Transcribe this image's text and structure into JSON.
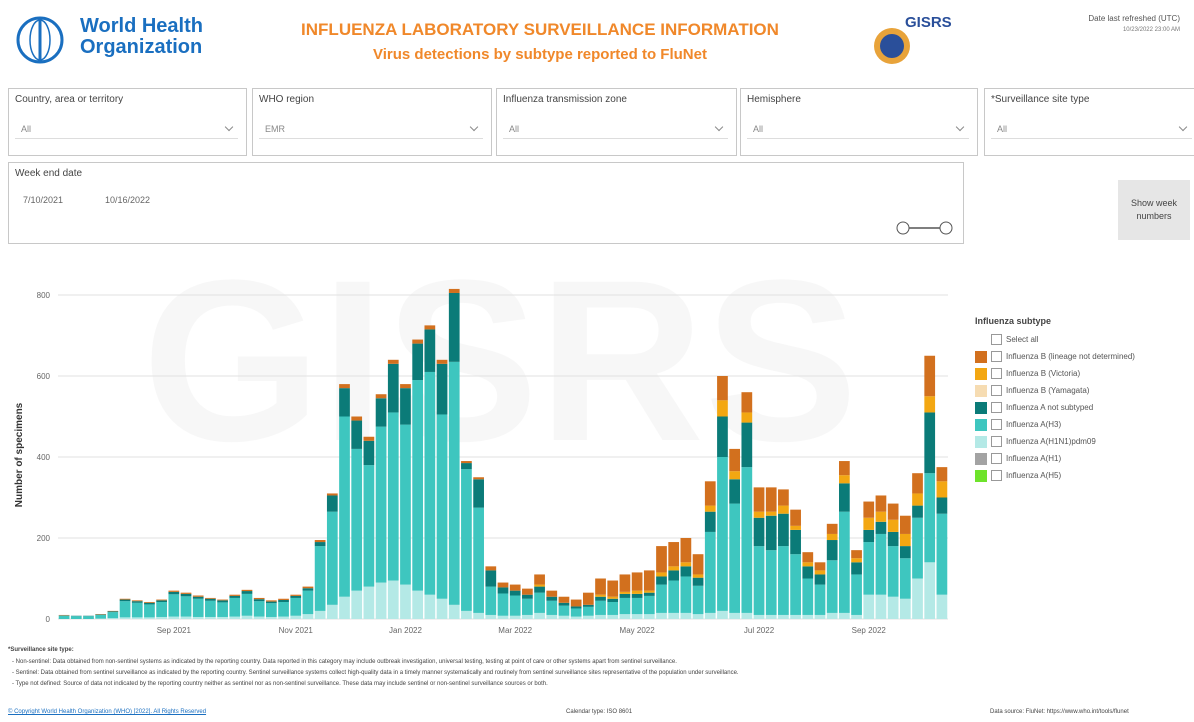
{
  "header": {
    "org_line1": "World Health",
    "org_line2": "Organization",
    "title": "INFLUENZA LABORATORY SURVEILLANCE INFORMATION",
    "subtitle": "Virus detections by subtype reported to FluNet",
    "logo_text": "GISRS",
    "refreshed_label": "Date last refreshed (UTC)",
    "refreshed_value": "10/23/2022 23:00 AM"
  },
  "filters": [
    {
      "label": "Country, area or territory",
      "value": "All"
    },
    {
      "label": "WHO region",
      "value": "EMR"
    },
    {
      "label": "Influenza transmission zone",
      "value": "All"
    },
    {
      "label": "Hemisphere",
      "value": "All"
    },
    {
      "label": "*Surveillance site type",
      "value": "All"
    }
  ],
  "date_filter": {
    "label": "Week end date",
    "start": "7/10/2021",
    "end": "10/16/2022"
  },
  "button": "Show week numbers",
  "chart_data": {
    "type": "stacked_bar",
    "ylabel": "Number of specimens",
    "watermark": "GISRS",
    "legend_title": "Influenza subtype",
    "legend_select_all": "Select all",
    "legend": "right",
    "grid": true,
    "ylim": [
      0,
      850
    ],
    "yticks": [
      0,
      200,
      400,
      600,
      800
    ],
    "categories": [
      null,
      null,
      null,
      null,
      null,
      null,
      null,
      null,
      null,
      "Sep 2021",
      null,
      null,
      null,
      null,
      null,
      null,
      null,
      null,
      null,
      "Nov 2021",
      null,
      null,
      null,
      null,
      null,
      null,
      null,
      null,
      "Jan 2022",
      null,
      null,
      null,
      null,
      null,
      null,
      null,
      null,
      "Mar 2022",
      null,
      null,
      null,
      null,
      null,
      null,
      null,
      null,
      null,
      "May 2022",
      null,
      null,
      null,
      null,
      null,
      null,
      null,
      null,
      null,
      "Jul 2022",
      null,
      null,
      null,
      null,
      null,
      null,
      null,
      null,
      "Sep 2022",
      null,
      null,
      null,
      null,
      null,
      null
    ],
    "series": [
      {
        "name": "Influenza B (lineage not determined)",
        "color": "#d2701e",
        "values": [
          1,
          0,
          0,
          1,
          1,
          2,
          2,
          2,
          2,
          3,
          3,
          3,
          2,
          2,
          3,
          3,
          3,
          3,
          3,
          3,
          4,
          5,
          5,
          10,
          10,
          10,
          10,
          10,
          10,
          10,
          10,
          10,
          10,
          5,
          5,
          10,
          12,
          15,
          15,
          25,
          15,
          15,
          17,
          30,
          40,
          40,
          43,
          45,
          50,
          65,
          60,
          60,
          50,
          60,
          60,
          55,
          50,
          60,
          60,
          40,
          40,
          25,
          20,
          25,
          35,
          20,
          40,
          40,
          40,
          45,
          50,
          100,
          35
        ]
      },
      {
        "name": "Influenza B (Victoria)",
        "color": "#f3a712",
        "values": [
          0,
          0,
          0,
          0,
          0,
          0,
          0,
          0,
          0,
          0,
          0,
          0,
          0,
          0,
          0,
          0,
          0,
          0,
          0,
          0,
          0,
          0,
          0,
          0,
          0,
          0,
          0,
          0,
          0,
          0,
          0,
          0,
          0,
          0,
          0,
          0,
          0,
          0,
          0,
          5,
          0,
          0,
          0,
          0,
          5,
          5,
          5,
          8,
          5,
          10,
          10,
          10,
          8,
          15,
          40,
          20,
          25,
          15,
          10,
          20,
          10,
          10,
          10,
          15,
          20,
          10,
          30,
          25,
          30,
          30,
          30,
          40,
          40
        ]
      },
      {
        "name": "Influenza B (Yamagata)",
        "color": "#f6dcb2",
        "values": [
          0,
          0,
          0,
          0,
          0,
          0,
          0,
          0,
          0,
          0,
          0,
          0,
          0,
          0,
          0,
          0,
          0,
          0,
          0,
          0,
          0,
          0,
          0,
          0,
          0,
          0,
          0,
          0,
          0,
          0,
          0,
          0,
          0,
          0,
          0,
          0,
          0,
          0,
          0,
          0,
          0,
          0,
          0,
          0,
          0,
          0,
          0,
          0,
          0,
          0,
          0,
          0,
          0,
          0,
          0,
          0,
          0,
          0,
          0,
          0,
          0,
          0,
          0,
          0,
          0,
          0,
          0,
          0,
          0,
          0,
          0,
          0,
          0
        ]
      },
      {
        "name": "Influenza A not subtyped",
        "color": "#0b7b78",
        "values": [
          1,
          1,
          1,
          1,
          2,
          4,
          4,
          4,
          4,
          6,
          6,
          5,
          5,
          5,
          5,
          7,
          5,
          4,
          5,
          5,
          6,
          10,
          40,
          70,
          70,
          60,
          70,
          120,
          90,
          90,
          105,
          125,
          170,
          15,
          70,
          40,
          15,
          12,
          10,
          15,
          10,
          7,
          5,
          5,
          10,
          8,
          10,
          10,
          8,
          20,
          25,
          25,
          20,
          50,
          100,
          60,
          110,
          70,
          85,
          80,
          60,
          30,
          25,
          50,
          70,
          30,
          30,
          30,
          35,
          30,
          30,
          150,
          40
        ]
      },
      {
        "name": "Influenza A(H3)",
        "color": "#3ec6bf",
        "values": [
          8,
          7,
          7,
          9,
          15,
          40,
          36,
          32,
          37,
          55,
          50,
          45,
          40,
          36,
          46,
          54,
          38,
          34,
          36,
          44,
          58,
          160,
          230,
          445,
          350,
          300,
          385,
          415,
          395,
          520,
          550,
          455,
          600,
          350,
          260,
          70,
          55,
          50,
          40,
          50,
          35,
          25,
          20,
          22,
          35,
          32,
          40,
          40,
          45,
          70,
          80,
          90,
          70,
          200,
          380,
          270,
          360,
          170,
          160,
          170,
          150,
          90,
          75,
          130,
          250,
          100,
          130,
          150,
          125,
          100,
          150,
          220,
          200
        ]
      },
      {
        "name": "Influenza A(H1N1)pdm09",
        "color": "#b4e9e6",
        "values": [
          0,
          0,
          0,
          1,
          2,
          4,
          4,
          4,
          5,
          6,
          6,
          5,
          5,
          5,
          6,
          8,
          6,
          5,
          6,
          8,
          12,
          20,
          35,
          55,
          70,
          80,
          90,
          95,
          85,
          70,
          60,
          50,
          35,
          20,
          15,
          10,
          8,
          8,
          10,
          15,
          10,
          8,
          6,
          8,
          10,
          10,
          12,
          12,
          12,
          15,
          15,
          15,
          12,
          15,
          20,
          15,
          15,
          10,
          10,
          10,
          10,
          10,
          10,
          15,
          15,
          10,
          60,
          60,
          55,
          50,
          100,
          140,
          60
        ]
      },
      {
        "name": "Influenza A(H1)",
        "color": "#a3a3a3",
        "values": [
          0,
          0,
          0,
          0,
          0,
          0,
          0,
          0,
          0,
          0,
          0,
          0,
          0,
          0,
          0,
          0,
          0,
          0,
          0,
          0,
          0,
          0,
          0,
          0,
          0,
          0,
          0,
          0,
          0,
          0,
          0,
          0,
          0,
          0,
          0,
          0,
          0,
          0,
          0,
          0,
          0,
          0,
          0,
          0,
          0,
          0,
          0,
          0,
          0,
          0,
          0,
          0,
          0,
          0,
          0,
          0,
          0,
          0,
          0,
          0,
          0,
          0,
          0,
          0,
          0,
          0,
          0,
          0,
          0,
          0,
          0,
          0,
          0
        ]
      },
      {
        "name": "Influenza A(H5)",
        "color": "#6ee32b",
        "values": [
          0,
          0,
          0,
          0,
          0,
          0,
          0,
          0,
          0,
          0,
          0,
          0,
          0,
          0,
          0,
          0,
          0,
          0,
          0,
          0,
          0,
          0,
          0,
          0,
          0,
          0,
          0,
          0,
          0,
          0,
          0,
          0,
          0,
          0,
          0,
          0,
          0,
          0,
          0,
          0,
          0,
          0,
          0,
          0,
          0,
          0,
          0,
          0,
          0,
          0,
          0,
          0,
          0,
          0,
          0,
          0,
          0,
          0,
          0,
          0,
          0,
          0,
          0,
          0,
          0,
          0,
          0,
          0,
          0,
          0,
          0,
          0,
          0
        ]
      }
    ]
  },
  "footnotes": {
    "heading": "*Surveillance site type:",
    "items": [
      "- Non-sentinel: Data obtained from non-sentinel systems as indicated by the reporting country. Data reported in this category may include outbreak investigation, universal testing, testing at point of care or other systems apart from sentinel surveillance.",
      "- Sentinel: Data obtained from sentinel surveillance as indicated by the reporting country. Sentinel surveillance systems collect high-quality data in a timely manner systematically and routinely from sentinel surveillance sites representative of the population under surveillance.",
      "- Type not defined: Source of data not indicated by the reporting country neither as sentinel nor as non-sentinel surveillance. These data may include sentinel or non-sentinel surveillance sources or both."
    ]
  },
  "footer": {
    "copyright": "© Copyright World Health Organization (WHO) [2022]. All Rights Reserved",
    "calendar": "Calendar type: ISO 8601",
    "source": "Data source: FluNet: https://www.who.int/tools/flunet"
  }
}
